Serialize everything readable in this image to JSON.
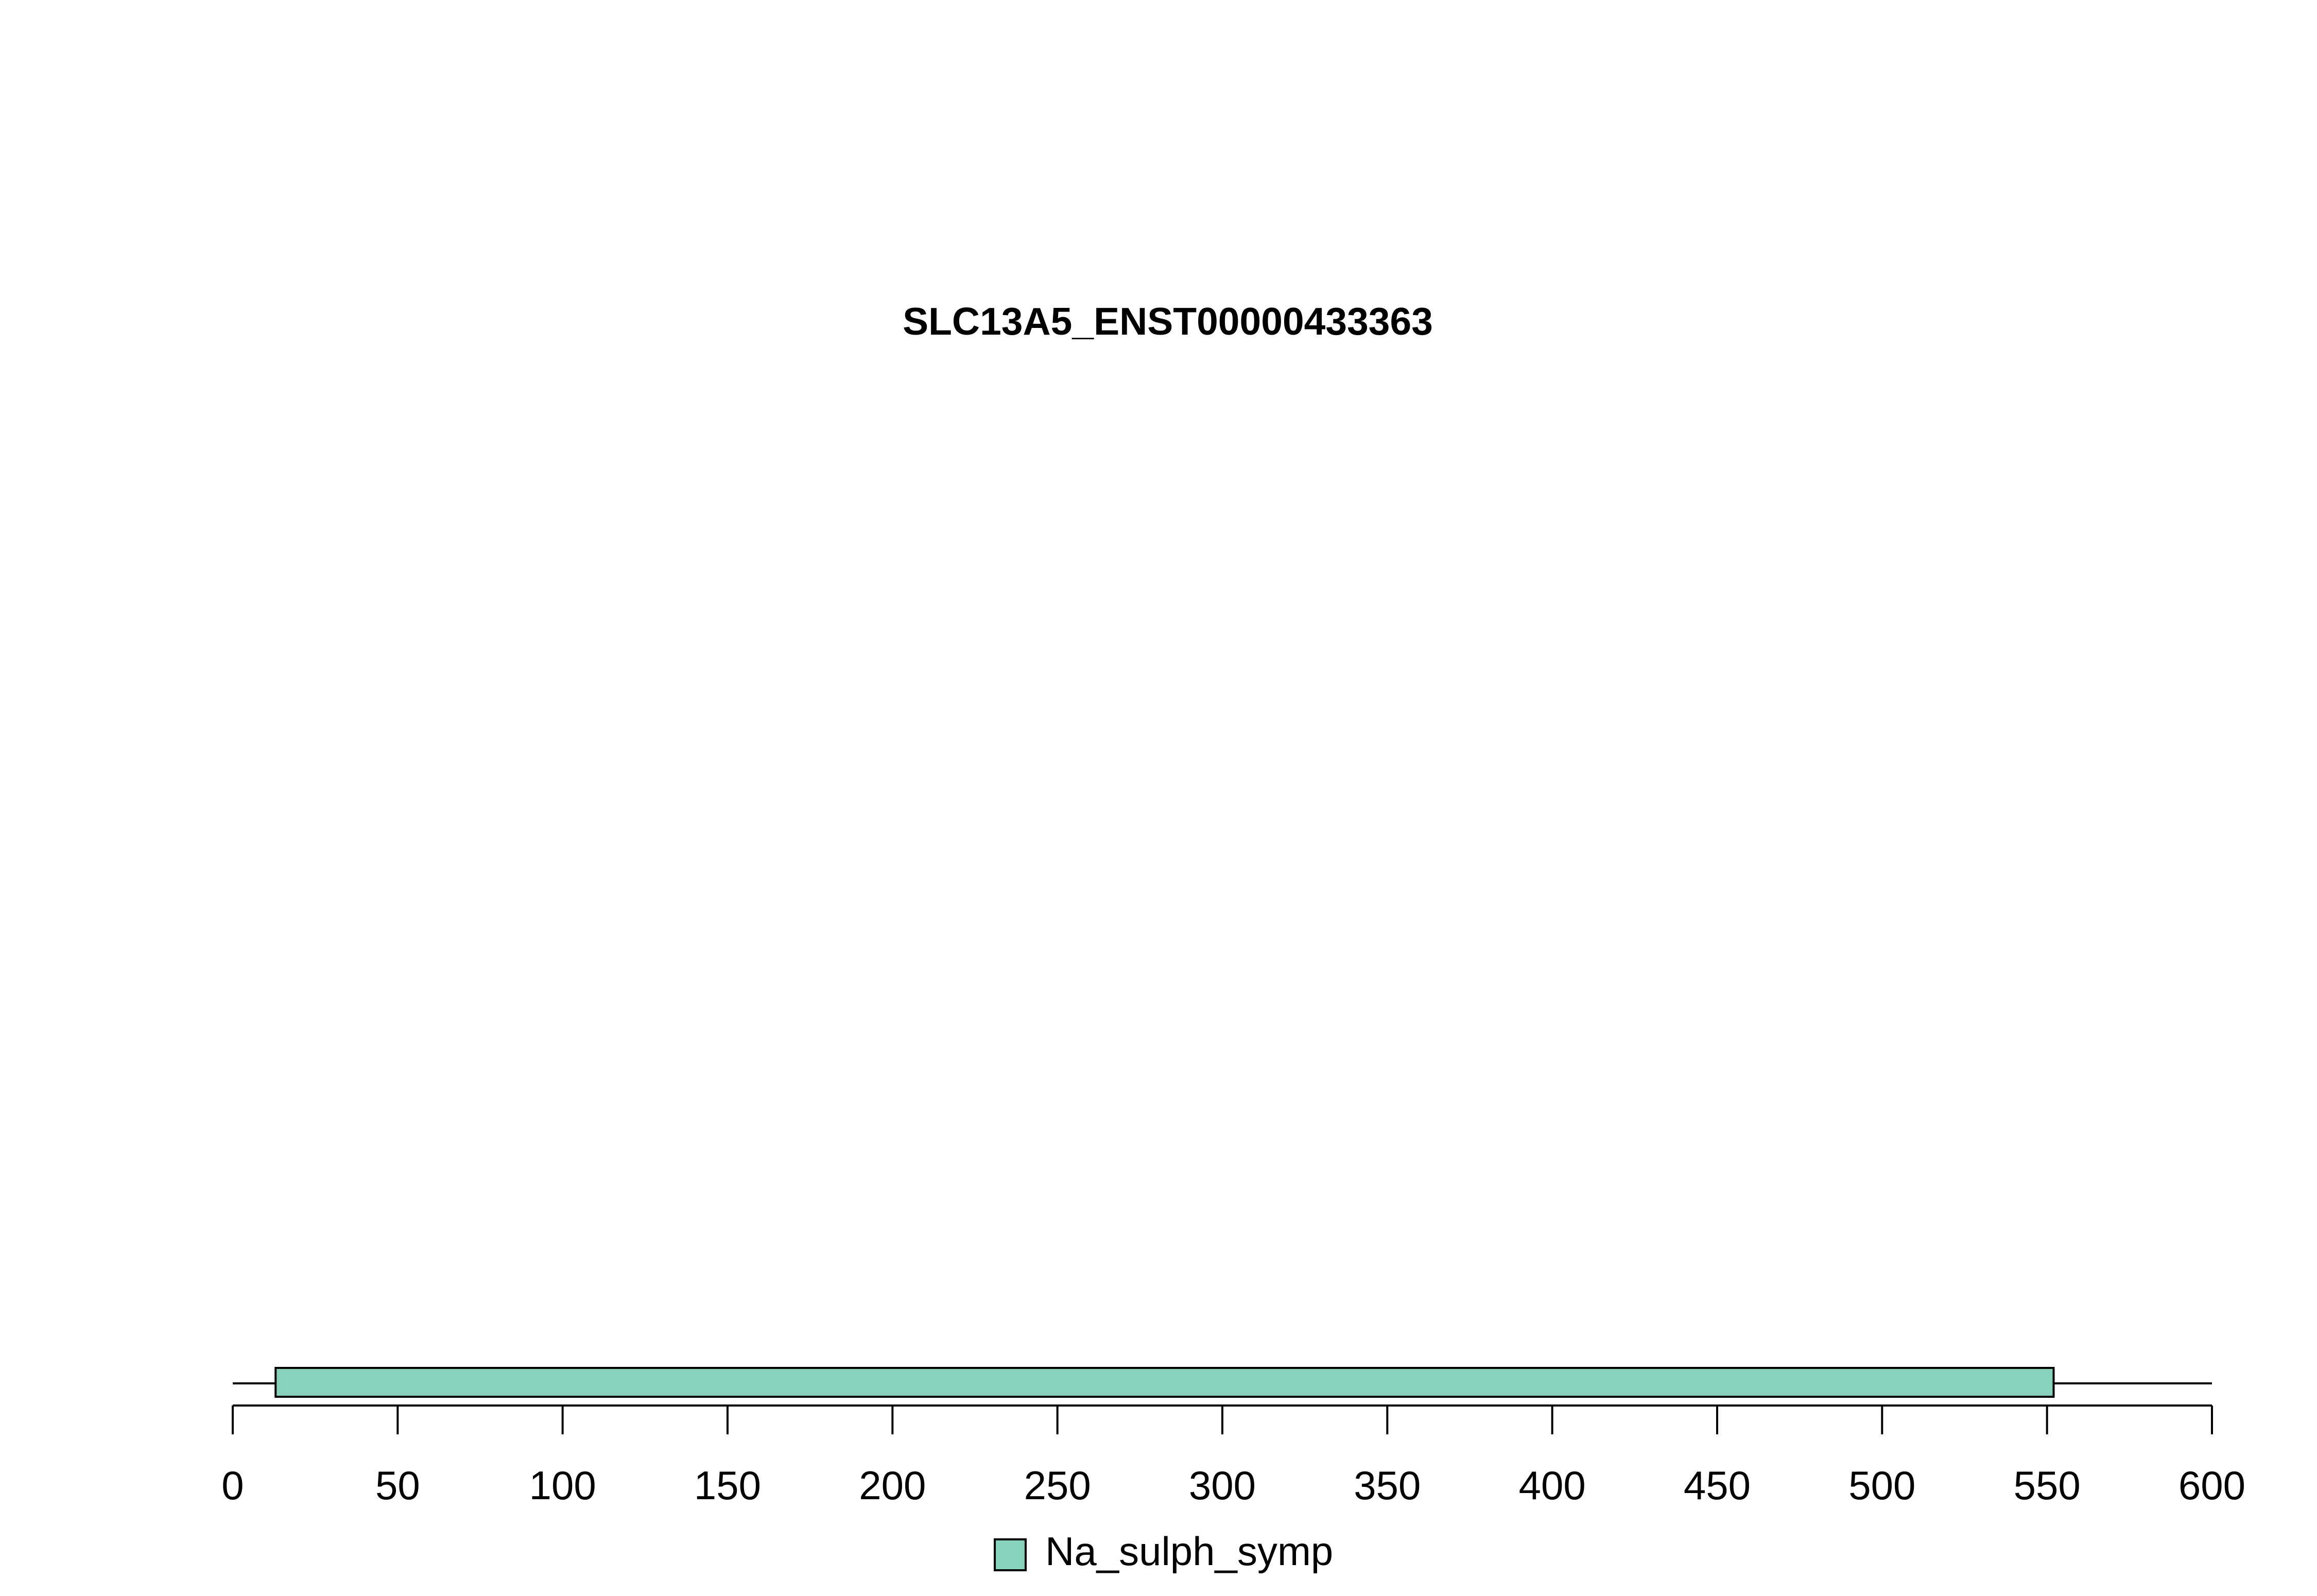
{
  "chart_data": {
    "type": "bar",
    "title": "SLC13A5_ENST00000433363",
    "protein_length": 600,
    "xlim": [
      0,
      600
    ],
    "ticks": [
      0,
      50,
      100,
      150,
      200,
      250,
      300,
      350,
      400,
      450,
      500,
      550,
      600
    ],
    "tick_labels": [
      "0",
      "50",
      "100",
      "150",
      "200",
      "250",
      "300",
      "350",
      "400",
      "450",
      "500",
      "550",
      "600"
    ],
    "domains": [
      {
        "name": "Na_sulph_symp",
        "start": 13,
        "end": 552,
        "color": "#88d1bd"
      }
    ],
    "legend": [
      {
        "label": "Na_sulph_symp",
        "color": "#88d1bd"
      }
    ],
    "legend_position": "bottom-center"
  }
}
